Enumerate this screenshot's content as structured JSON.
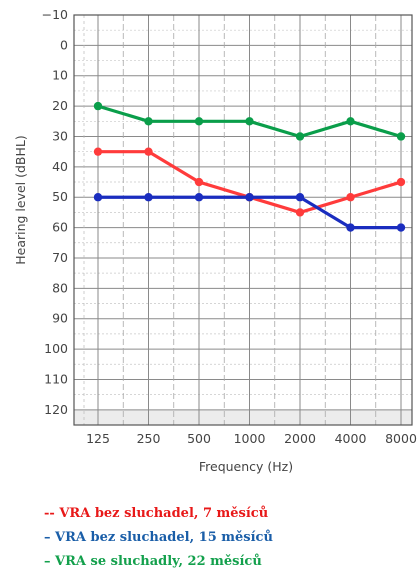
{
  "chart_data": {
    "type": "line",
    "x": [
      "125",
      "250",
      "500",
      "1000",
      "2000",
      "4000",
      "8000"
    ],
    "xlabel": "Frequency (Hz)",
    "ylabel": "Hearing level (dBHL)",
    "y_ticks": [
      "−10",
      "0",
      "10",
      "20",
      "30",
      "40",
      "50",
      "60",
      "70",
      "80",
      "90",
      "100",
      "110",
      "120"
    ],
    "ylim": [
      -10,
      125
    ],
    "y_inverted": true,
    "grid": true,
    "series": [
      {
        "name": "VRA bez sluchadel, 7 měsíců",
        "color": "#ff3b3b",
        "values": [
          35,
          35,
          45,
          50,
          55,
          50,
          45
        ]
      },
      {
        "name": "VRA bez sluchadel, 15 měsíců",
        "color": "#1a2dbf",
        "values": [
          50,
          50,
          50,
          50,
          50,
          60,
          60
        ]
      },
      {
        "name": "VRA se sluchadly, 22 měsíců",
        "color": "#0a9e4a",
        "values": [
          20,
          25,
          25,
          25,
          30,
          25,
          30
        ]
      }
    ]
  },
  "legend": [
    {
      "text": "-- VRA bez sluchadel, 7 měsíců",
      "color": "#e81818"
    },
    {
      "text": "– VRA bez sluchadel, 15 měsíců",
      "color": "#1a5ea8"
    },
    {
      "text": "– VRA se sluchadly, 22 měsíců",
      "color": "#13a04c"
    }
  ]
}
